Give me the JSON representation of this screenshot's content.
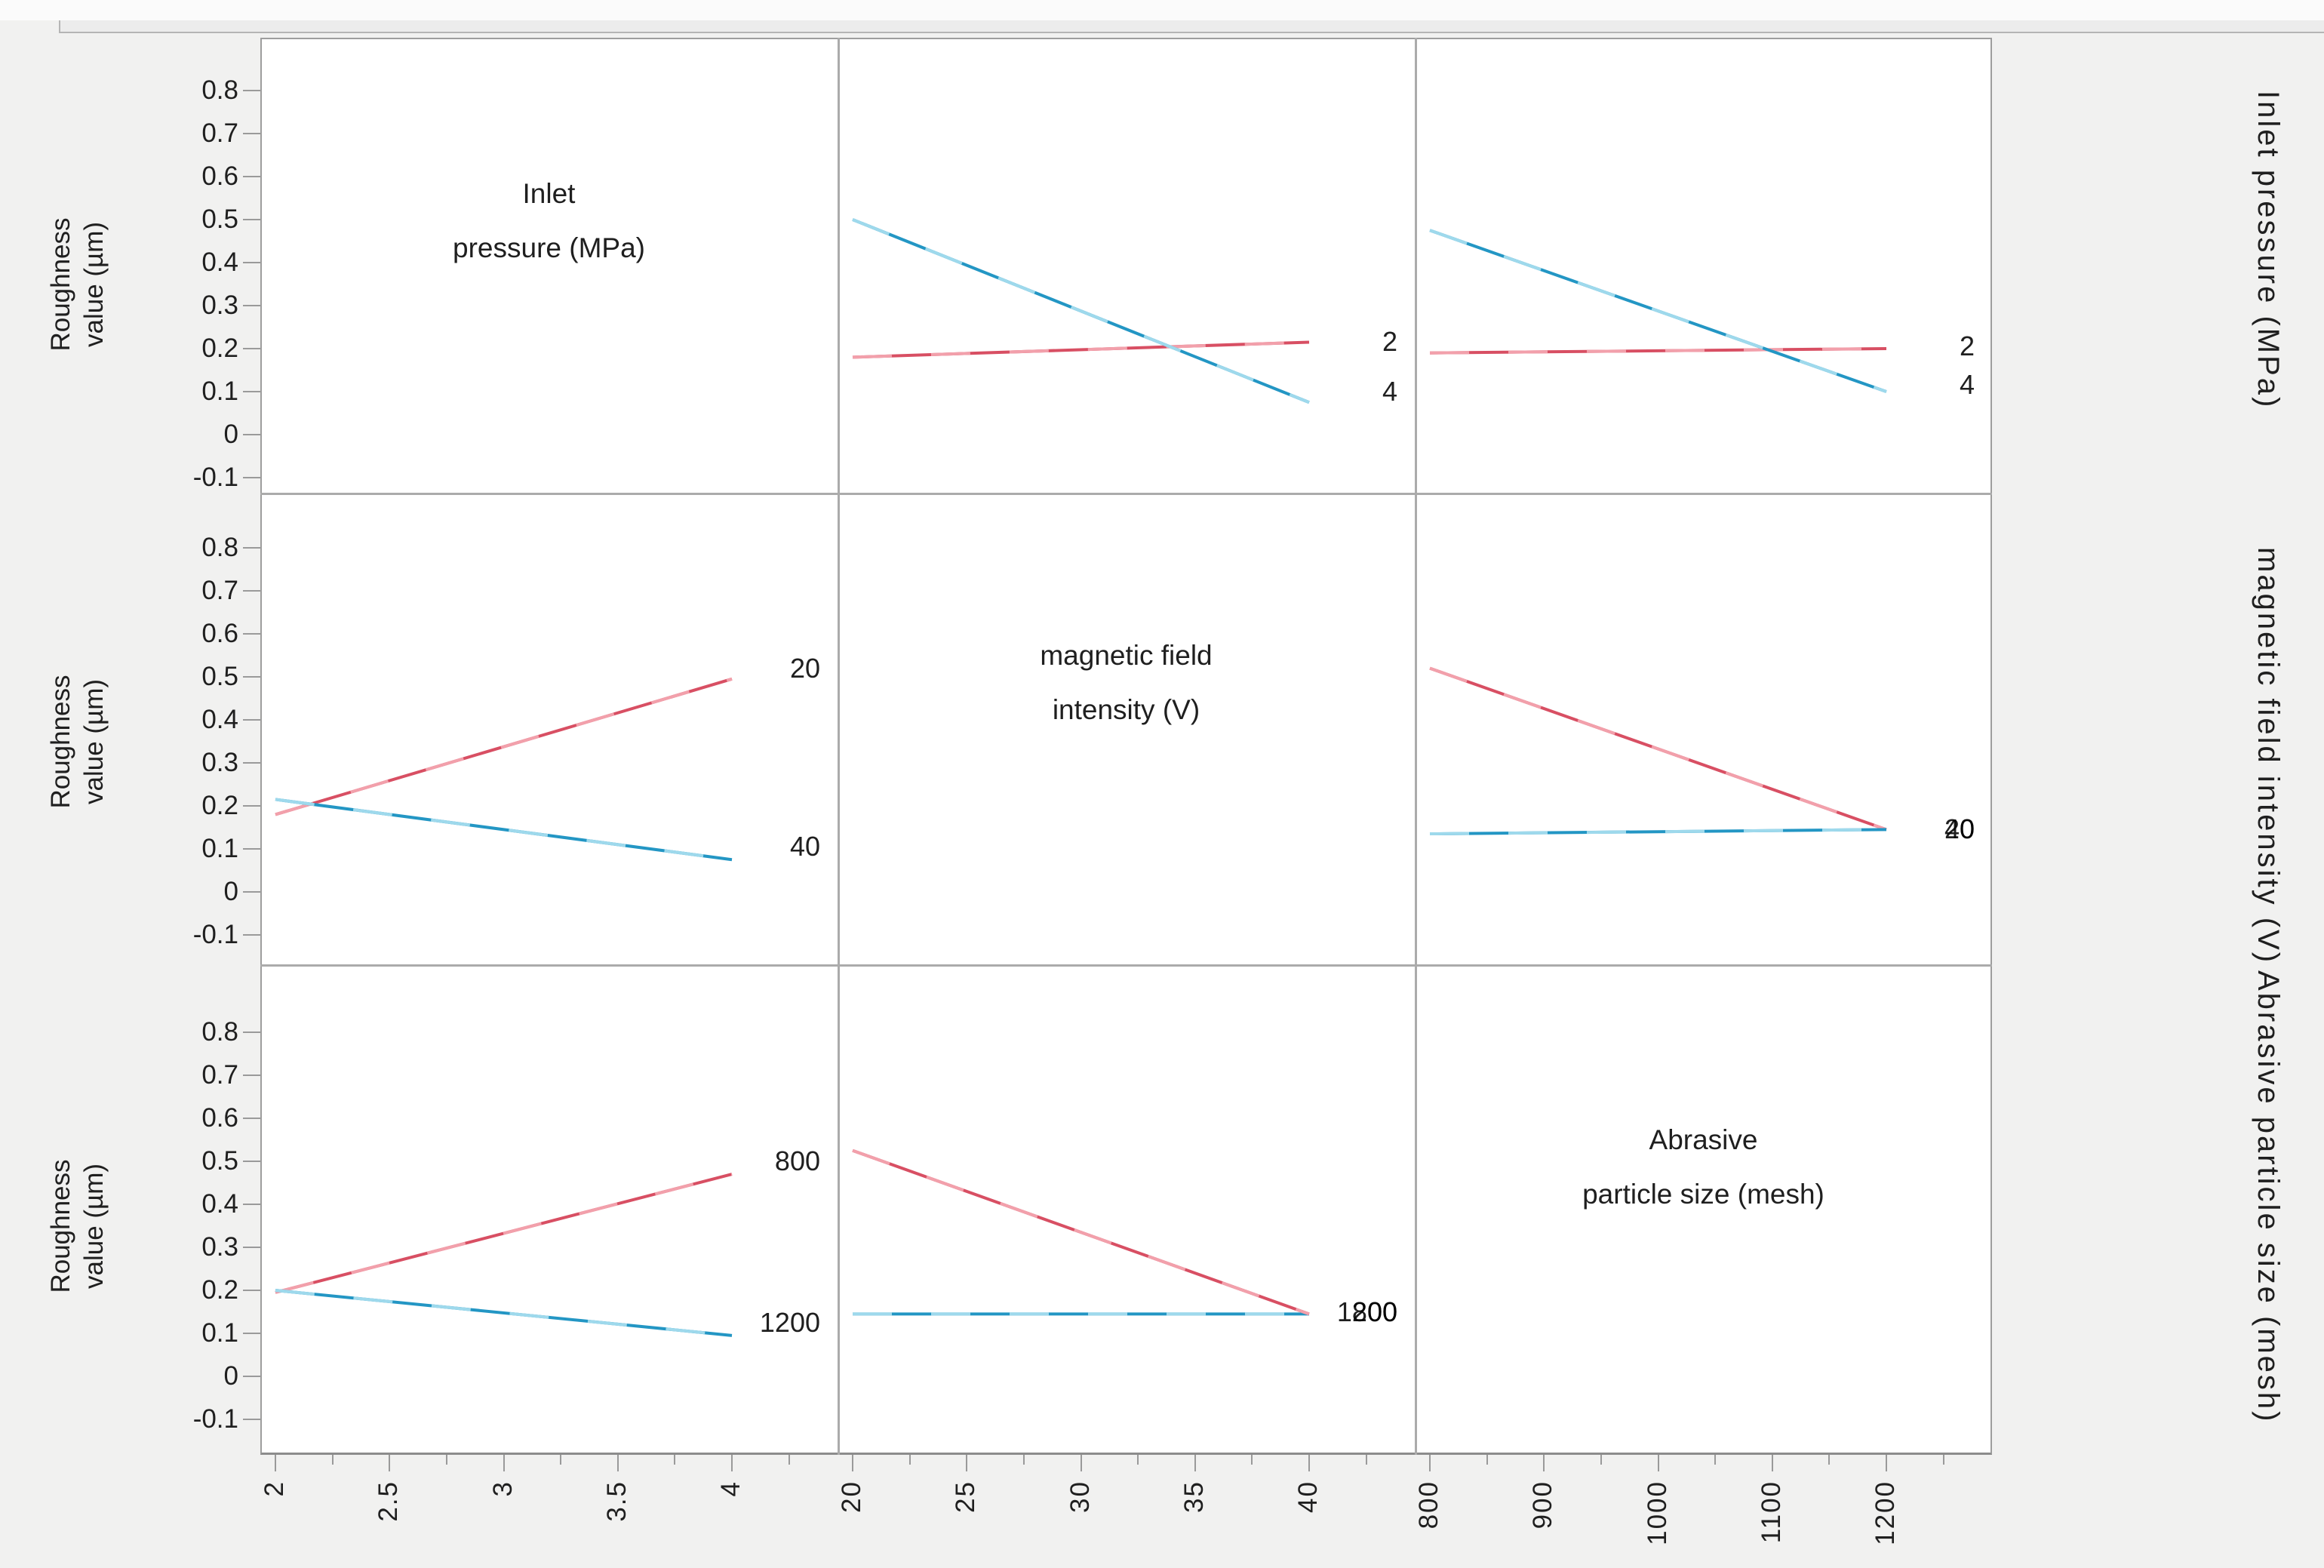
{
  "figure": {
    "response_axis": {
      "label_line1": "Roughness",
      "label_line2": "value (µm)",
      "tick_labels": [
        "0.8",
        "0.7",
        "0.6",
        "0.5",
        "0.4",
        "0.3",
        "0.2",
        "0.1",
        "0",
        "-0.1"
      ]
    },
    "bottom_axis_columns": [
      {
        "tick_labels": [
          "2",
          "2.5",
          "3",
          "3.5",
          "4"
        ]
      },
      {
        "tick_labels": [
          "20",
          "25",
          "30",
          "35",
          "40"
        ]
      },
      {
        "tick_labels": [
          "800",
          "900",
          "1000",
          "1100",
          "1200"
        ]
      }
    ],
    "diagonal_labels": [
      {
        "line1": "Inlet",
        "line2": "pressure (MPa)"
      },
      {
        "line1": "magnetic field",
        "line2": "intensity (V)"
      },
      {
        "line1": "Abrasive",
        "line2": "particle size (mesh)"
      }
    ],
    "right_row_labels": [
      "Inlet pressure (MPa)",
      "magnetic field intensity (V)",
      "Abrasive particle size (mesh)"
    ],
    "colors": {
      "red_line": "#d84f63",
      "red_line_light": "#f2a0ab",
      "blue_line": "#2396c4",
      "blue_line_light": "#9ed9ec",
      "panel_border": "#9d9d9d",
      "tick": "#9a9a9a",
      "text": "#1f1f1f",
      "background": "#f1f1f0",
      "scrollbar": "#ececec"
    }
  },
  "chart_data": {
    "type": "line",
    "layout": "3x3 interaction plot matrix",
    "response_label": "Roughness value (µm)",
    "ylim": [
      -0.1,
      0.8
    ],
    "grid": "off",
    "factors": [
      {
        "name": "Inlet pressure (MPa)",
        "levels": [
          2,
          4
        ],
        "tick_values": [
          2,
          2.5,
          3,
          3.5,
          4
        ]
      },
      {
        "name": "magnetic field intensity (V)",
        "levels": [
          20,
          40
        ],
        "tick_values": [
          20,
          25,
          30,
          35,
          40
        ]
      },
      {
        "name": "Abrasive particle size (mesh)",
        "levels": [
          800,
          1200
        ],
        "tick_values": [
          800,
          900,
          1000,
          1100,
          1200
        ]
      }
    ],
    "panels": [
      {
        "row": 1,
        "col": 2,
        "x_factor": "magnetic field intensity (V)",
        "by_factor": "Inlet pressure (MPa)",
        "x": [
          20,
          40
        ],
        "series": [
          {
            "name": "2",
            "color": "red",
            "y": [
              0.18,
              0.215
            ],
            "label_y": 0.215
          },
          {
            "name": "4",
            "color": "blue",
            "y": [
              0.5,
              0.075
            ],
            "label_y": 0.1
          }
        ]
      },
      {
        "row": 1,
        "col": 3,
        "x_factor": "Abrasive particle size (mesh)",
        "by_factor": "Inlet pressure (MPa)",
        "x": [
          800,
          1200
        ],
        "series": [
          {
            "name": "2",
            "color": "red",
            "y": [
              0.19,
              0.2
            ],
            "label_y": 0.205
          },
          {
            "name": "4",
            "color": "blue",
            "y": [
              0.475,
              0.1
            ],
            "label_y": 0.115
          }
        ]
      },
      {
        "row": 2,
        "col": 1,
        "x_factor": "Inlet pressure (MPa)",
        "by_factor": "magnetic field intensity (V)",
        "x": [
          2,
          4
        ],
        "series": [
          {
            "name": "20",
            "color": "red",
            "y": [
              0.18,
              0.495
            ],
            "label_y": 0.52
          },
          {
            "name": "40",
            "color": "blue",
            "y": [
              0.215,
              0.075
            ],
            "label_y": 0.105
          }
        ]
      },
      {
        "row": 2,
        "col": 3,
        "x_factor": "Abrasive particle size (mesh)",
        "by_factor": "magnetic field intensity (V)",
        "x": [
          800,
          1200
        ],
        "series": [
          {
            "name": "20",
            "color": "red",
            "y": [
              0.52,
              0.145
            ],
            "label_y": 0.145
          },
          {
            "name": "40",
            "color": "blue",
            "y": [
              0.135,
              0.145
            ],
            "label_y": 0.145
          }
        ]
      },
      {
        "row": 3,
        "col": 1,
        "x_factor": "Inlet pressure (MPa)",
        "by_factor": "Abrasive particle size (mesh)",
        "x": [
          2,
          4
        ],
        "series": [
          {
            "name": "800",
            "color": "red",
            "y": [
              0.195,
              0.47
            ],
            "label_y": 0.5
          },
          {
            "name": "1200",
            "color": "blue",
            "y": [
              0.2,
              0.095
            ],
            "label_y": 0.125
          }
        ]
      },
      {
        "row": 3,
        "col": 2,
        "x_factor": "magnetic field intensity (V)",
        "by_factor": "Abrasive particle size (mesh)",
        "x": [
          20,
          40
        ],
        "series": [
          {
            "name": "1200",
            "color": "blue",
            "y": [
              0.145,
              0.145
            ],
            "label_y": 0.15
          },
          {
            "name": "800",
            "color": "red",
            "y": [
              0.525,
              0.145
            ],
            "label_y": 0.15
          }
        ]
      }
    ]
  }
}
